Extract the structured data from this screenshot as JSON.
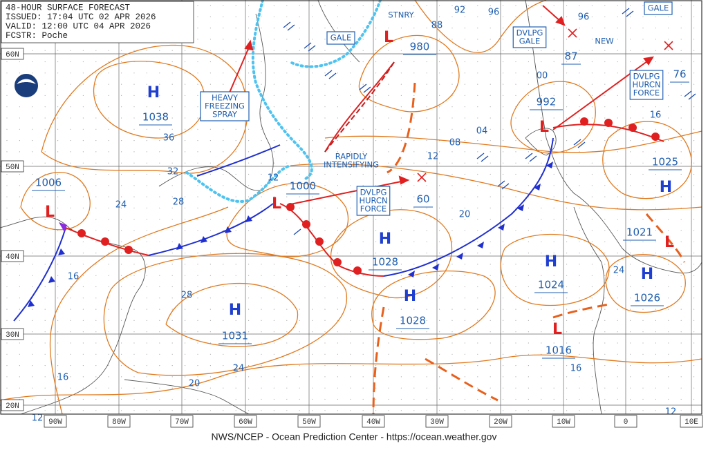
{
  "header": {
    "lines": [
      "48-HOUR SURFACE FORECAST",
      "ISSUED: 17:04 UTC 02 APR 2026",
      "VALID: 12:00 UTC 04 APR 2026",
      "FCSTR: Poche"
    ]
  },
  "latitude_labels": [
    "60N",
    "50N",
    "40N",
    "30N",
    "20N"
  ],
  "longitude_labels": [
    "90W",
    "80W",
    "70W",
    "60W",
    "50W",
    "40W",
    "30W",
    "20W",
    "10W",
    "0",
    "10E"
  ],
  "pressure_systems": [
    {
      "symbol": "H",
      "value": "1038"
    },
    {
      "symbol": "H",
      "value": "1031"
    },
    {
      "symbol": "H",
      "value": "1028"
    },
    {
      "symbol": "H",
      "value": "1028"
    },
    {
      "symbol": "H",
      "value": "1024"
    },
    {
      "symbol": "H",
      "value": "1026"
    },
    {
      "symbol": "H",
      "value": "1025"
    },
    {
      "symbol": "L",
      "value": "1006"
    },
    {
      "symbol": "L",
      "value": "1000"
    },
    {
      "symbol": "L",
      "value": "980"
    },
    {
      "symbol": "L",
      "value": "992"
    },
    {
      "symbol": "L",
      "value": "1016"
    },
    {
      "symbol": "L",
      "value": "1021"
    }
  ],
  "storm_values": [
    "60",
    "87",
    "76"
  ],
  "annotations": [
    {
      "lines": [
        "HEAVY",
        "FREEZING",
        "SPRAY"
      ]
    },
    {
      "lines": [
        "RAPIDLY",
        "INTENSIFYING"
      ]
    },
    {
      "lines": [
        "DVLPG",
        "HURCN",
        "FORCE"
      ]
    },
    {
      "lines": [
        "GALE"
      ]
    },
    {
      "lines": [
        "STNRY"
      ]
    },
    {
      "lines": [
        "DVLPG",
        "GALE"
      ]
    },
    {
      "lines": [
        "NEW"
      ]
    },
    {
      "lines": [
        "GALE"
      ]
    },
    {
      "lines": [
        "DVLPG",
        "HURCN",
        "FORCE"
      ]
    }
  ],
  "isobar_labels": [
    "92",
    "96",
    "88",
    "96",
    "00",
    "04",
    "08",
    "12",
    "36",
    "32",
    "28",
    "24",
    "16",
    "28",
    "12",
    "20",
    "24",
    "16",
    "24",
    "20",
    "16",
    "12",
    "16",
    "12"
  ],
  "footer": "NWS/NCEP - Ocean Prediction Center - https://ocean.weather.gov"
}
